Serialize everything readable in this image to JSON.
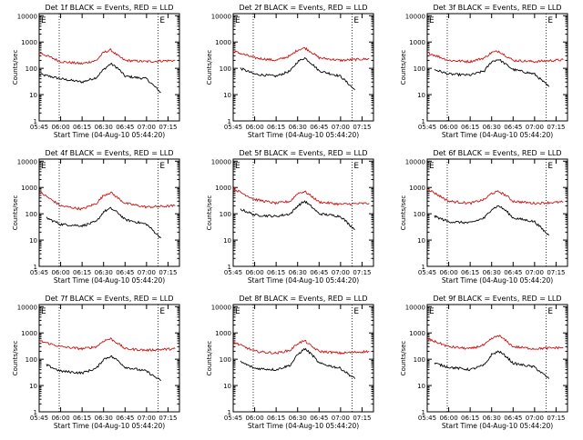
{
  "chart_data": [
    {
      "type": "line",
      "title": "Det 1f BLACK = Events, RED = LLD",
      "xlabel": "Start Time (04-Aug-10 05:44:20)",
      "ylabel": "Counts/sec",
      "x_ticks": [
        "05:45",
        "06:00",
        "06:15",
        "06:30",
        "06:45",
        "07:00",
        "07:15"
      ],
      "y_ticks": [
        "1",
        "10",
        "100",
        "1000",
        "10000"
      ],
      "yscale": "log",
      "ylim": [
        1,
        12000
      ],
      "markers": [
        {
          "label": "E",
          "x": "05:45"
        },
        {
          "label": "E",
          "x": "07:08"
        }
      ],
      "vlines": [
        "05:59",
        "07:08"
      ],
      "series": [
        {
          "name": "Events",
          "color": "#000000",
          "x": [
            "05:45",
            "06:00",
            "06:15",
            "06:25",
            "06:30",
            "06:35",
            "06:40",
            "06:45",
            "07:00",
            "07:10"
          ],
          "values": [
            60,
            40,
            30,
            45,
            90,
            150,
            100,
            50,
            40,
            12
          ]
        },
        {
          "name": "LLD",
          "color": "#d01010",
          "x": [
            "05:45",
            "06:00",
            "06:15",
            "06:25",
            "06:30",
            "06:35",
            "06:40",
            "06:45",
            "07:00",
            "07:20"
          ],
          "values": [
            400,
            180,
            150,
            200,
            400,
            500,
            300,
            200,
            180,
            200
          ]
        }
      ]
    },
    {
      "type": "line",
      "title": "Det 2f BLACK = Events, RED = LLD",
      "xlabel": "Start Time (04-Aug-10 05:44:20)",
      "ylabel": "Counts/sec",
      "x_ticks": [
        "05:45",
        "06:00",
        "06:15",
        "06:30",
        "06:45",
        "07:00",
        "07:15"
      ],
      "y_ticks": [
        "1",
        "10",
        "100",
        "1000",
        "10000"
      ],
      "yscale": "log",
      "ylim": [
        1,
        12000
      ],
      "markers": [
        {
          "label": "E",
          "x": "05:45"
        },
        {
          "label": "E",
          "x": "07:08"
        }
      ],
      "vlines": [
        "05:59",
        "07:08"
      ],
      "series": [
        {
          "name": "Events",
          "color": "#000000",
          "x": [
            "05:50",
            "06:00",
            "06:15",
            "06:25",
            "06:30",
            "06:35",
            "06:40",
            "06:45",
            "07:00",
            "07:10"
          ],
          "values": [
            100,
            60,
            50,
            80,
            180,
            250,
            150,
            80,
            50,
            15
          ]
        },
        {
          "name": "LLD",
          "color": "#d01010",
          "x": [
            "05:45",
            "06:00",
            "06:15",
            "06:25",
            "06:30",
            "06:35",
            "06:40",
            "06:45",
            "07:00",
            "07:20"
          ],
          "values": [
            450,
            250,
            200,
            300,
            500,
            600,
            400,
            250,
            200,
            230
          ]
        }
      ]
    },
    {
      "type": "line",
      "title": "Det 3f BLACK = Events, RED = LLD",
      "xlabel": "Start Time (04-Aug-10 05:44:20)",
      "ylabel": "Counts/sec",
      "x_ticks": [
        "05:45",
        "06:00",
        "06:15",
        "06:30",
        "06:45",
        "07:00",
        "07:15"
      ],
      "y_ticks": [
        "1",
        "10",
        "100",
        "1000",
        "10000"
      ],
      "yscale": "log",
      "ylim": [
        1,
        12000
      ],
      "markers": [
        {
          "label": "E",
          "x": "05:45"
        },
        {
          "label": "E",
          "x": "07:08"
        }
      ],
      "vlines": [
        "05:59",
        "07:08"
      ],
      "series": [
        {
          "name": "Events",
          "color": "#000000",
          "x": [
            "05:50",
            "06:00",
            "06:15",
            "06:25",
            "06:30",
            "06:35",
            "06:40",
            "06:45",
            "07:00",
            "07:10"
          ],
          "values": [
            90,
            60,
            55,
            80,
            180,
            220,
            140,
            90,
            60,
            20
          ]
        },
        {
          "name": "LLD",
          "color": "#d01010",
          "x": [
            "05:45",
            "06:00",
            "06:15",
            "06:25",
            "06:30",
            "06:35",
            "06:40",
            "06:45",
            "07:00",
            "07:20"
          ],
          "values": [
            400,
            200,
            180,
            250,
            400,
            450,
            300,
            200,
            180,
            210
          ]
        }
      ]
    },
    {
      "type": "line",
      "title": "Det 4f BLACK = Events, RED = LLD",
      "xlabel": "Start Time (04-Aug-10 05:44:20)",
      "ylabel": "Counts/sec",
      "x_ticks": [
        "05:45",
        "06:00",
        "06:15",
        "06:30",
        "06:45",
        "07:00",
        "07:15"
      ],
      "y_ticks": [
        "1",
        "10",
        "100",
        "1000",
        "10000"
      ],
      "yscale": "log",
      "ylim": [
        1,
        12000
      ],
      "markers": [
        {
          "label": "E",
          "x": "05:45"
        },
        {
          "label": "E",
          "x": "07:08"
        }
      ],
      "vlines": [
        "05:59",
        "07:08"
      ],
      "series": [
        {
          "name": "Events",
          "color": "#000000",
          "x": [
            "05:50",
            "06:00",
            "06:15",
            "06:25",
            "06:30",
            "06:35",
            "06:40",
            "06:45",
            "07:00",
            "07:10"
          ],
          "values": [
            70,
            40,
            35,
            50,
            120,
            160,
            110,
            60,
            40,
            12
          ]
        },
        {
          "name": "LLD",
          "color": "#d01010",
          "x": [
            "05:45",
            "06:00",
            "06:15",
            "06:25",
            "06:30",
            "06:35",
            "06:40",
            "06:45",
            "07:00",
            "07:20"
          ],
          "values": [
            700,
            200,
            150,
            250,
            500,
            650,
            400,
            250,
            180,
            200
          ]
        }
      ]
    },
    {
      "type": "line",
      "title": "Det 5f BLACK = Events, RED = LLD",
      "xlabel": "Start Time (04-Aug-10 05:44:20)",
      "ylabel": "Counts/sec",
      "x_ticks": [
        "05:45",
        "06:00",
        "06:15",
        "06:30",
        "06:45",
        "07:00",
        "07:15"
      ],
      "y_ticks": [
        "1",
        "10",
        "100",
        "1000",
        "10000"
      ],
      "yscale": "log",
      "ylim": [
        1,
        12000
      ],
      "markers": [
        {
          "label": "E",
          "x": "05:45"
        },
        {
          "label": "E",
          "x": "07:08"
        }
      ],
      "vlines": [
        "05:59",
        "07:08"
      ],
      "series": [
        {
          "name": "Events",
          "color": "#000000",
          "x": [
            "05:50",
            "06:00",
            "06:15",
            "06:25",
            "06:30",
            "06:35",
            "06:40",
            "06:45",
            "07:00",
            "07:10"
          ],
          "values": [
            150,
            90,
            80,
            100,
            200,
            300,
            180,
            100,
            80,
            25
          ]
        },
        {
          "name": "LLD",
          "color": "#d01010",
          "x": [
            "05:45",
            "06:00",
            "06:15",
            "06:25",
            "06:30",
            "06:35",
            "06:40",
            "06:45",
            "07:00",
            "07:20"
          ],
          "values": [
            900,
            350,
            250,
            300,
            600,
            700,
            450,
            280,
            230,
            250
          ]
        }
      ]
    },
    {
      "type": "line",
      "title": "Det 6f BLACK = Events, RED = LLD",
      "xlabel": "Start Time (04-Aug-10 05:44:20)",
      "ylabel": "Counts/sec",
      "x_ticks": [
        "05:45",
        "06:00",
        "06:15",
        "06:30",
        "06:45",
        "07:00",
        "07:15"
      ],
      "y_ticks": [
        "1",
        "10",
        "100",
        "1000",
        "10000"
      ],
      "yscale": "log",
      "ylim": [
        1,
        12000
      ],
      "markers": [
        {
          "label": "E",
          "x": "05:45"
        },
        {
          "label": "E",
          "x": "07:08"
        }
      ],
      "vlines": [
        "05:59",
        "07:08"
      ],
      "series": [
        {
          "name": "Events",
          "color": "#000000",
          "x": [
            "05:50",
            "06:00",
            "06:15",
            "06:25",
            "06:30",
            "06:35",
            "06:40",
            "06:45",
            "07:00",
            "07:10"
          ],
          "values": [
            80,
            50,
            45,
            70,
            150,
            200,
            130,
            70,
            50,
            15
          ]
        },
        {
          "name": "LLD",
          "color": "#d01010",
          "x": [
            "05:45",
            "06:00",
            "06:15",
            "06:25",
            "06:30",
            "06:35",
            "06:40",
            "06:45",
            "07:00",
            "07:20"
          ],
          "values": [
            900,
            300,
            250,
            350,
            600,
            700,
            500,
            300,
            250,
            280
          ]
        }
      ]
    },
    {
      "type": "line",
      "title": "Det 7f BLACK = Events, RED = LLD",
      "xlabel": "Start Time (04-Aug-10 05:44:20)",
      "ylabel": "Counts/sec",
      "x_ticks": [
        "05:45",
        "06:00",
        "06:15",
        "06:30",
        "06:45",
        "07:00",
        "07:15"
      ],
      "y_ticks": [
        "1",
        "10",
        "100",
        "1000",
        "10000"
      ],
      "yscale": "log",
      "ylim": [
        1,
        12000
      ],
      "markers": [
        {
          "label": "E",
          "x": "05:45"
        },
        {
          "label": "E",
          "x": "07:08"
        }
      ],
      "vlines": [
        "05:59",
        "07:08"
      ],
      "series": [
        {
          "name": "Events",
          "color": "#000000",
          "x": [
            "05:50",
            "06:00",
            "06:15",
            "06:25",
            "06:30",
            "06:35",
            "06:40",
            "06:45",
            "07:00",
            "07:10"
          ],
          "values": [
            60,
            35,
            30,
            45,
            100,
            130,
            90,
            50,
            35,
            15
          ]
        },
        {
          "name": "LLD",
          "color": "#d01010",
          "x": [
            "05:45",
            "06:00",
            "06:15",
            "06:25",
            "06:30",
            "06:35",
            "06:40",
            "06:45",
            "07:00",
            "07:20"
          ],
          "values": [
            500,
            300,
            250,
            300,
            500,
            600,
            400,
            250,
            220,
            250
          ]
        }
      ]
    },
    {
      "type": "line",
      "title": "Det 8f BLACK = Events, RED = LLD",
      "xlabel": "Start Time (04-Aug-10 05:44:20)",
      "ylabel": "Counts/sec",
      "x_ticks": [
        "05:45",
        "06:00",
        "06:15",
        "06:30",
        "06:45",
        "07:00",
        "07:15"
      ],
      "y_ticks": [
        "1",
        "10",
        "100",
        "1000",
        "10000"
      ],
      "yscale": "log",
      "ylim": [
        1,
        12000
      ],
      "markers": [
        {
          "label": "E",
          "x": "05:45"
        },
        {
          "label": "E",
          "x": "07:08"
        }
      ],
      "vlines": [
        "05:59",
        "07:08"
      ],
      "series": [
        {
          "name": "Events",
          "color": "#000000",
          "x": [
            "05:50",
            "06:00",
            "06:15",
            "06:25",
            "06:30",
            "06:35",
            "06:40",
            "06:45",
            "07:00",
            "07:10"
          ],
          "values": [
            80,
            45,
            40,
            60,
            150,
            250,
            150,
            70,
            45,
            18
          ]
        },
        {
          "name": "LLD",
          "color": "#d01010",
          "x": [
            "05:45",
            "06:00",
            "06:15",
            "06:25",
            "06:30",
            "06:35",
            "06:40",
            "06:45",
            "07:00",
            "07:20"
          ],
          "values": [
            450,
            200,
            170,
            220,
            400,
            500,
            300,
            200,
            170,
            200
          ]
        }
      ]
    },
    {
      "type": "line",
      "title": "Det 9f BLACK = Events, RED = LLD",
      "xlabel": "Start Time (04-Aug-10 05:44:20)",
      "ylabel": "Counts/sec",
      "x_ticks": [
        "05:45",
        "06:00",
        "06:15",
        "06:30",
        "06:45",
        "07:00",
        "07:15"
      ],
      "y_ticks": [
        "1",
        "10",
        "100",
        "1000",
        "10000"
      ],
      "yscale": "log",
      "ylim": [
        1,
        12000
      ],
      "markers": [
        {
          "label": "E",
          "x": "05:45"
        },
        {
          "label": "E",
          "x": "07:08"
        }
      ],
      "vlines": [
        "05:59",
        "07:08"
      ],
      "series": [
        {
          "name": "Events",
          "color": "#000000",
          "x": [
            "05:50",
            "06:00",
            "06:15",
            "06:25",
            "06:30",
            "06:35",
            "06:40",
            "06:45",
            "07:00",
            "07:10"
          ],
          "values": [
            70,
            50,
            40,
            60,
            150,
            200,
            130,
            70,
            50,
            18
          ]
        },
        {
          "name": "LLD",
          "color": "#d01010",
          "x": [
            "05:45",
            "06:00",
            "06:15",
            "06:25",
            "06:30",
            "06:35",
            "06:40",
            "06:45",
            "07:00",
            "07:20"
          ],
          "values": [
            600,
            300,
            250,
            350,
            600,
            800,
            500,
            300,
            250,
            280
          ]
        }
      ]
    }
  ]
}
